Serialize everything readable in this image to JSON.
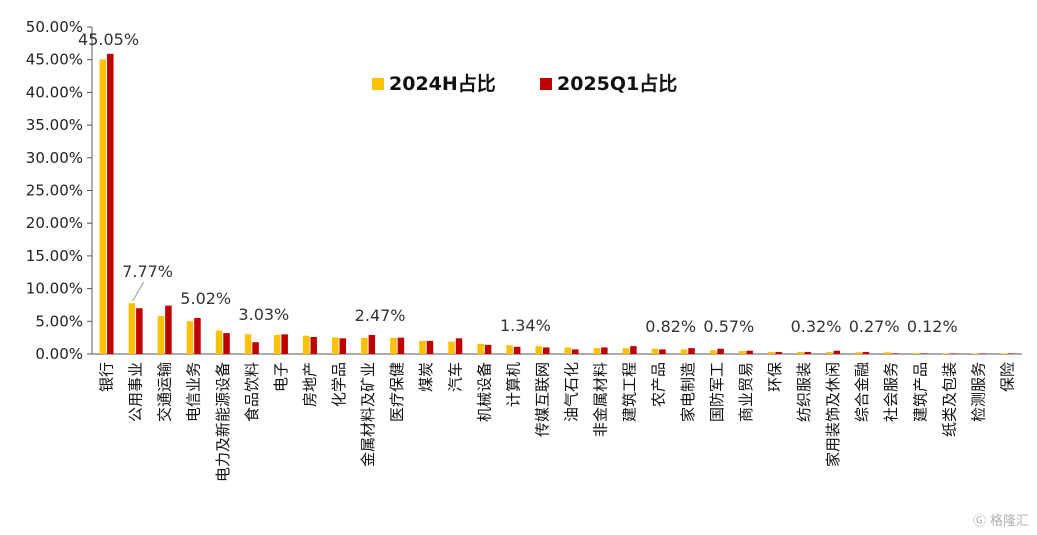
{
  "chart_data": {
    "type": "bar",
    "title": "",
    "xlabel": "",
    "ylabel": "",
    "ylim": [
      0,
      50
    ],
    "yticks": [
      "0.00%",
      "5.00%",
      "10.00%",
      "15.00%",
      "20.00%",
      "25.00%",
      "30.00%",
      "35.00%",
      "40.00%",
      "45.00%",
      "50.00%"
    ],
    "grid": false,
    "legend_position": "top-center",
    "categories": [
      "银行",
      "公用事业",
      "交通运输",
      "电信业务",
      "电力及新能源设备",
      "食品饮料",
      "电子",
      "房地产",
      "化学品",
      "金属材料及矿业",
      "医疗保健",
      "煤炭",
      "汽车",
      "机械设备",
      "计算机",
      "传媒互联网",
      "油气石化",
      "非金属材料",
      "建筑工程",
      "农产品",
      "家电制造",
      "国防军工",
      "商业贸易",
      "环保",
      "纺织服装",
      "家用装饰及休闲",
      "综合金融",
      "社会服务",
      "建筑产品",
      "纸类及包装",
      "检测服务",
      "保险"
    ],
    "series": [
      {
        "name": "2024H占比",
        "color": "#FFC000",
        "values": [
          45.05,
          7.77,
          5.8,
          5.02,
          3.6,
          3.03,
          2.9,
          2.8,
          2.55,
          2.47,
          2.47,
          2.0,
          1.9,
          1.55,
          1.34,
          1.2,
          1.0,
          0.9,
          0.9,
          0.82,
          0.7,
          0.57,
          0.45,
          0.32,
          0.32,
          0.3,
          0.27,
          0.27,
          0.12,
          0.05,
          0.03,
          0.02
        ]
      },
      {
        "name": "2025Q1占比",
        "color": "#C00000",
        "values": [
          45.9,
          7.0,
          7.4,
          5.5,
          3.2,
          1.8,
          3.0,
          2.6,
          2.4,
          2.9,
          2.5,
          2.0,
          2.4,
          1.4,
          1.1,
          1.0,
          0.7,
          1.0,
          1.2,
          0.7,
          0.9,
          0.8,
          0.5,
          0.3,
          0.3,
          0.5,
          0.3,
          0.1,
          0.05,
          0.03,
          0.02,
          0.01
        ]
      }
    ],
    "data_labels": [
      {
        "category_index": 0,
        "text": "45.05%"
      },
      {
        "category_index": 1,
        "text": "7.77%"
      },
      {
        "category_index": 3,
        "text": "5.02%"
      },
      {
        "category_index": 5,
        "text": "3.03%"
      },
      {
        "category_index": 9,
        "text": "2.47%"
      },
      {
        "category_index": 14,
        "text": "1.34%"
      },
      {
        "category_index": 19,
        "text": "0.82%"
      },
      {
        "category_index": 21,
        "text": "0.57%"
      },
      {
        "category_index": 24,
        "text": "0.32%"
      },
      {
        "category_index": 26,
        "text": "0.27%"
      },
      {
        "category_index": 28,
        "text": "0.12%"
      }
    ]
  },
  "watermark": "格隆汇"
}
